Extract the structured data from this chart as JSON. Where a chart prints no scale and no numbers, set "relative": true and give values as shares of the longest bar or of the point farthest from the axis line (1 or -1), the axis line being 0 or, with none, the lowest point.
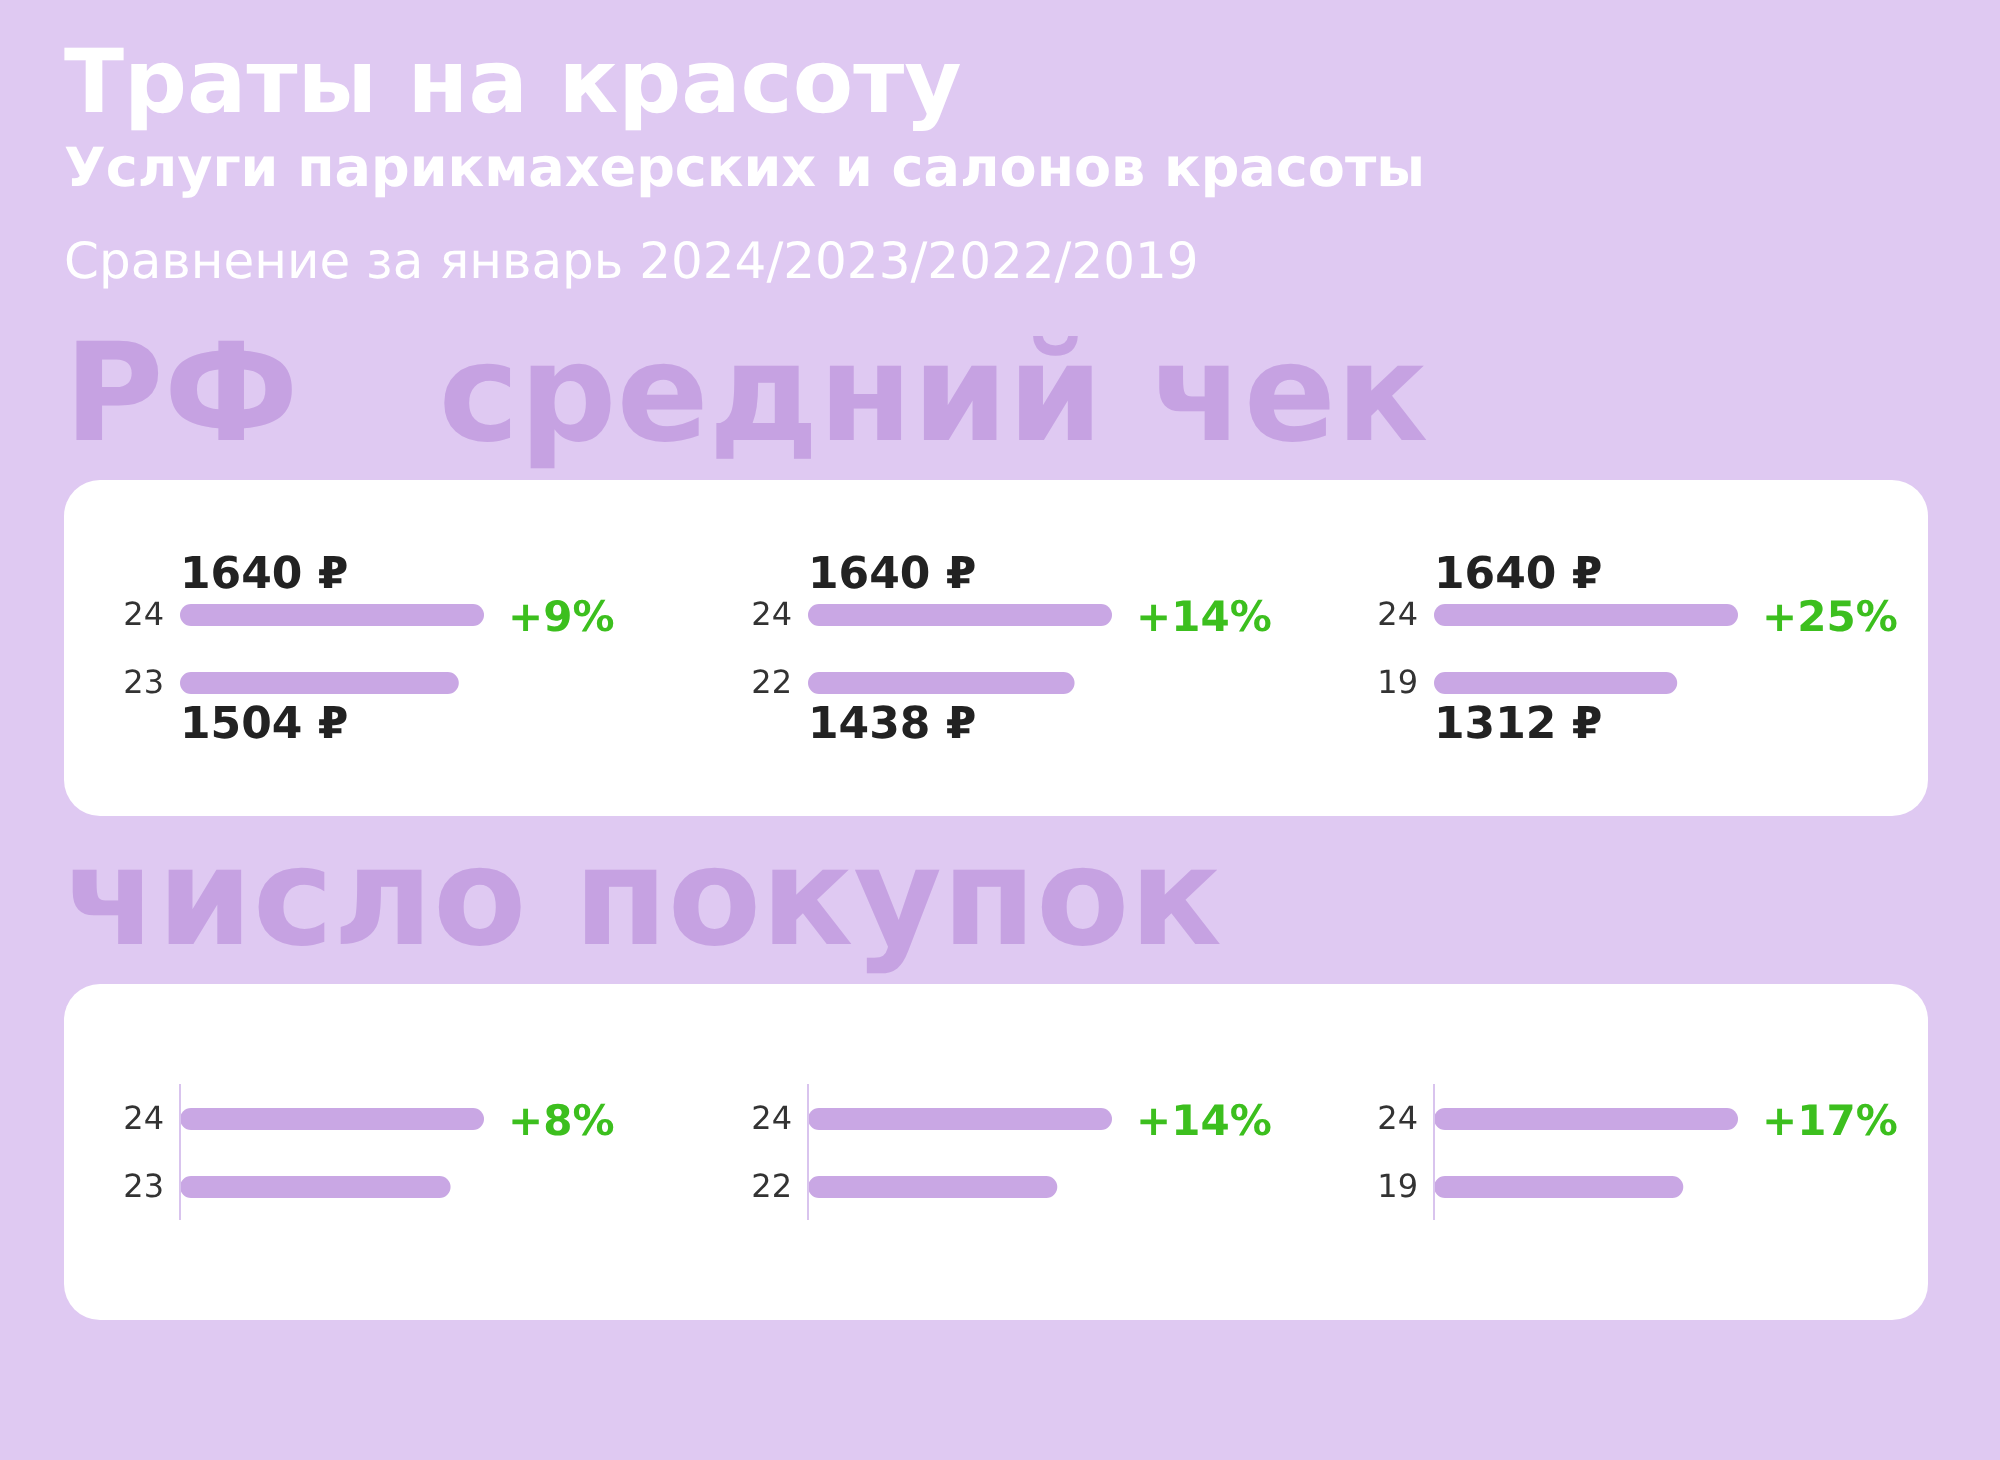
{
  "chart_data": [
    {
      "type": "bar",
      "orientation": "horizontal",
      "title": "Траты на красоту",
      "subtitle": "Услуги парикмахерских и салонов красоты",
      "annotations": [
        "Сравнение за январь 2024/2023/2022/2019",
        "РФ",
        "средний чек",
        "+9%"
      ],
      "categories": [
        "24",
        "23"
      ],
      "values": [
        1640,
        1504
      ],
      "value_labels": [
        "1640 ₽",
        "1504 ₽"
      ],
      "color": "#c9a7e4"
    },
    {
      "type": "bar",
      "orientation": "horizontal",
      "annotations": [
        "+14%"
      ],
      "categories": [
        "24",
        "22"
      ],
      "values": [
        1640,
        1438
      ],
      "value_labels": [
        "1640 ₽",
        "1438 ₽"
      ],
      "color": "#c9a7e4"
    },
    {
      "type": "bar",
      "orientation": "horizontal",
      "annotations": [
        "+25%"
      ],
      "categories": [
        "24",
        "19"
      ],
      "values": [
        1640,
        1312
      ],
      "value_labels": [
        "1640 ₽",
        "1312 ₽"
      ],
      "color": "#c9a7e4"
    },
    {
      "type": "bar",
      "orientation": "horizontal",
      "relative": true,
      "annotations": [
        "число покупок",
        "+8%"
      ],
      "categories": [
        "24",
        "23"
      ],
      "values": [
        1,
        0.89
      ],
      "color": "#c9a7e4"
    },
    {
      "type": "bar",
      "orientation": "horizontal",
      "relative": true,
      "annotations": [
        "+14%"
      ],
      "categories": [
        "24",
        "22"
      ],
      "values": [
        1,
        0.82
      ],
      "color": "#c9a7e4"
    },
    {
      "type": "bar",
      "orientation": "horizontal",
      "relative": true,
      "annotations": [
        "+17%"
      ],
      "categories": [
        "24",
        "19"
      ],
      "values": [
        1,
        0.82
      ],
      "color": "#c9a7e4"
    }
  ]
}
